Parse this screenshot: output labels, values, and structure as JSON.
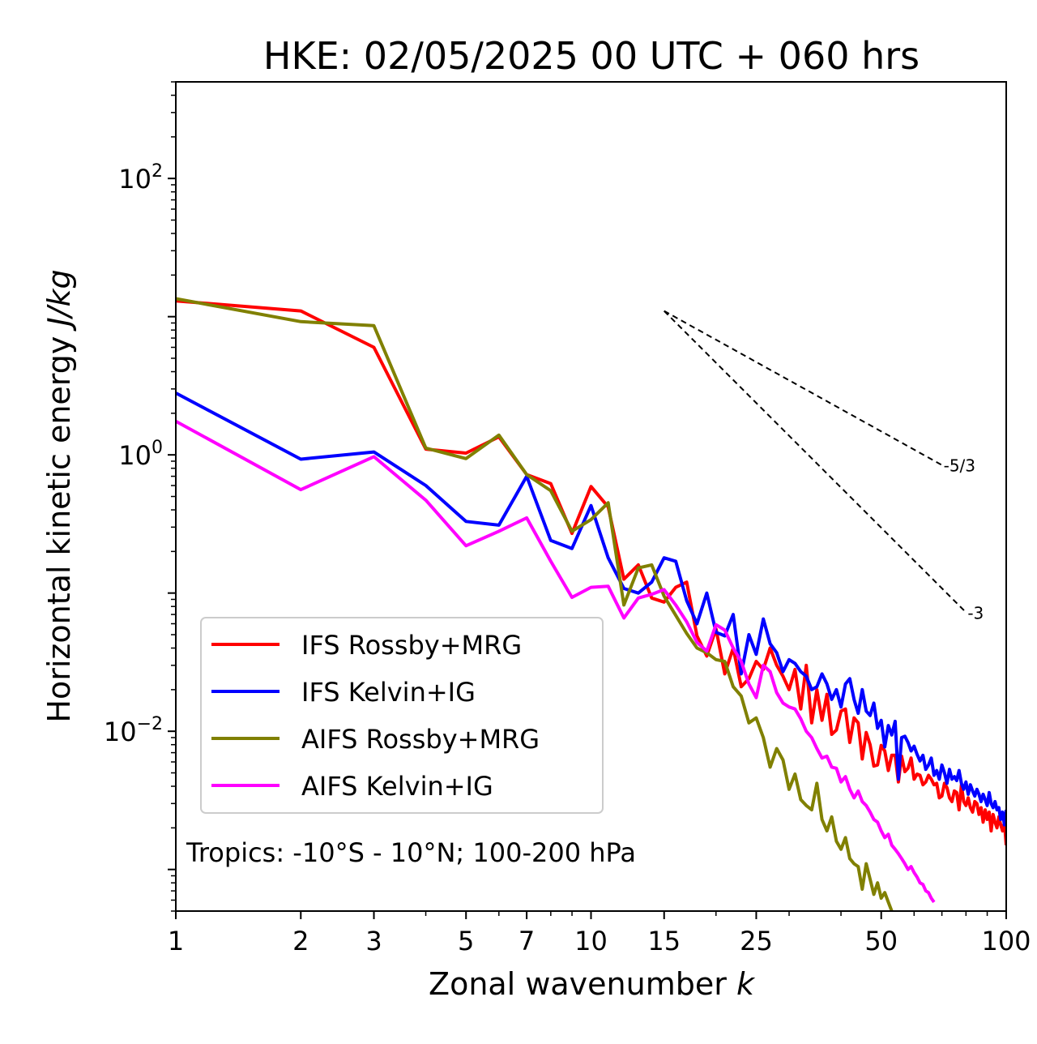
{
  "chart_data": {
    "type": "line",
    "title": "HKE: 02/05/2025 00 UTC + 060 hrs",
    "xlabel": "Zonal wavenumber",
    "xlabel_var": "k",
    "ylabel": "Horizontal kinetic energy",
    "ylabel_unit": "J/kg",
    "xscale": "log",
    "yscale": "log",
    "xlim": [
      1,
      100
    ],
    "ylim": [
      0.0005,
      500
    ],
    "x_ticks": [
      {
        "value": 1,
        "label": "1"
      },
      {
        "value": 2,
        "label": "2"
      },
      {
        "value": 3,
        "label": "3"
      },
      {
        "value": 5,
        "label": "5"
      },
      {
        "value": 7,
        "label": "7"
      },
      {
        "value": 10,
        "label": "10"
      },
      {
        "value": 15,
        "label": "15"
      },
      {
        "value": 25,
        "label": "25"
      },
      {
        "value": 50,
        "label": "50"
      },
      {
        "value": 100,
        "label": "100"
      }
    ],
    "y_ticks": [
      {
        "value": 0.01,
        "base": "10",
        "exp": "−2"
      },
      {
        "value": 1,
        "base": "10",
        "exp": "0"
      },
      {
        "value": 100,
        "base": "10",
        "exp": "2"
      }
    ],
    "annotation": "Tropics: -10°S - 10°N; 100-200 hPa",
    "legend_placement": "lower-left",
    "grid": false,
    "reference_slopes": [
      {
        "label": "-5/3",
        "exponent": -1.6667,
        "x_start": 15,
        "x_end": 70,
        "y_start": 11
      },
      {
        "label": "-3",
        "exponent": -3,
        "x_start": 15,
        "x_end": 80,
        "y_start": 11
      }
    ],
    "series": [
      {
        "name": "IFS Rossby+MRG",
        "color": "#ff0000",
        "x": [
          1,
          2,
          3,
          4,
          5,
          6,
          7,
          8,
          9,
          10,
          11,
          12,
          13,
          14,
          15,
          16,
          17,
          18,
          19,
          20,
          21,
          22,
          23,
          24,
          25,
          26,
          27,
          28,
          29,
          30,
          31,
          32,
          33,
          34,
          35,
          36,
          37,
          38,
          39,
          40,
          41,
          42,
          43,
          44,
          45,
          46,
          47,
          48,
          49,
          50,
          51,
          52,
          53,
          54,
          55,
          56,
          57,
          58,
          59,
          60,
          61,
          62,
          63,
          64,
          65,
          66,
          67,
          68,
          69,
          70,
          71,
          72,
          73,
          74,
          75,
          76,
          77,
          78,
          79,
          80,
          81,
          82,
          83,
          84,
          85,
          86,
          87,
          88,
          89,
          90,
          91,
          92,
          93,
          94,
          95,
          96,
          97,
          98,
          99,
          100
        ],
        "values": [
          13,
          11,
          6,
          1.1,
          1.03,
          1.35,
          0.72,
          0.62,
          0.27,
          0.59,
          0.42,
          0.126,
          0.16,
          0.092,
          0.086,
          0.11,
          0.12,
          0.049,
          0.035,
          0.055,
          0.026,
          0.04,
          0.021,
          0.024,
          0.032,
          0.028,
          0.04,
          0.03,
          0.025,
          0.02,
          0.028,
          0.0145,
          0.03,
          0.0115,
          0.02,
          0.012,
          0.0185,
          0.0095,
          0.0102,
          0.014,
          0.0145,
          0.0083,
          0.0125,
          0.0115,
          0.0063,
          0.0098,
          0.008,
          0.0056,
          0.0057,
          0.0079,
          0.0072,
          0.0052,
          0.0067,
          0.0067,
          0.0043,
          0.0066,
          0.0051,
          0.0054,
          0.0064,
          0.0045,
          0.0049,
          0.0048,
          0.0041,
          0.0043,
          0.0048,
          0.0045,
          0.0041,
          0.0042,
          0.0033,
          0.0034,
          0.0042,
          0.0039,
          0.0033,
          0.0031,
          0.0037,
          0.0036,
          0.0027,
          0.0041,
          0.0031,
          0.0029,
          0.0033,
          0.0028,
          0.0026,
          0.0031,
          0.003,
          0.0025,
          0.0028,
          0.0022,
          0.0027,
          0.0023,
          0.0026,
          0.0019,
          0.0025,
          0.0022,
          0.002,
          0.0024,
          0.0021,
          0.0019,
          0.0022,
          0.0015
        ]
      },
      {
        "name": "IFS Kelvin+IG",
        "color": "#0000ff",
        "x": [
          1,
          2,
          3,
          4,
          5,
          6,
          7,
          8,
          9,
          10,
          11,
          12,
          13,
          14,
          15,
          16,
          17,
          18,
          19,
          20,
          21,
          22,
          23,
          24,
          25,
          26,
          27,
          28,
          29,
          30,
          31,
          32,
          33,
          34,
          35,
          36,
          37,
          38,
          39,
          40,
          41,
          42,
          43,
          44,
          45,
          46,
          47,
          48,
          49,
          50,
          51,
          52,
          53,
          54,
          55,
          56,
          57,
          58,
          59,
          60,
          61,
          62,
          63,
          64,
          65,
          66,
          67,
          68,
          69,
          70,
          71,
          72,
          73,
          74,
          75,
          76,
          77,
          78,
          79,
          80,
          81,
          82,
          83,
          84,
          85,
          86,
          87,
          88,
          89,
          90,
          91,
          92,
          93,
          94,
          95,
          96,
          97,
          98,
          99,
          100
        ],
        "values": [
          2.8,
          0.93,
          1.05,
          0.6,
          0.33,
          0.31,
          0.7,
          0.24,
          0.21,
          0.43,
          0.18,
          0.108,
          0.1,
          0.12,
          0.18,
          0.17,
          0.088,
          0.06,
          0.1,
          0.052,
          0.049,
          0.07,
          0.026,
          0.05,
          0.036,
          0.065,
          0.043,
          0.037,
          0.027,
          0.033,
          0.031,
          0.027,
          0.025,
          0.02,
          0.021,
          0.026,
          0.022,
          0.017,
          0.02,
          0.015,
          0.022,
          0.024,
          0.017,
          0.0135,
          0.02,
          0.014,
          0.013,
          0.016,
          0.0105,
          0.012,
          0.0077,
          0.011,
          0.0094,
          0.0118,
          0.0045,
          0.009,
          0.0092,
          0.0083,
          0.0072,
          0.0078,
          0.0068,
          0.0061,
          0.0067,
          0.0053,
          0.0057,
          0.0064,
          0.0048,
          0.0052,
          0.0045,
          0.0057,
          0.005,
          0.0042,
          0.0053,
          0.0045,
          0.0047,
          0.0044,
          0.0052,
          0.0042,
          0.0038,
          0.0043,
          0.0035,
          0.0041,
          0.0037,
          0.0034,
          0.0038,
          0.0035,
          0.0031,
          0.0035,
          0.0032,
          0.0029,
          0.0036,
          0.003,
          0.0028,
          0.0031,
          0.0027,
          0.0028,
          0.0023,
          0.0026,
          0.0021,
          0.0027
        ]
      },
      {
        "name": "AIFS Rossby+MRG",
        "color": "#808000",
        "x": [
          1,
          2,
          3,
          4,
          5,
          6,
          7,
          8,
          9,
          10,
          11,
          12,
          13,
          14,
          15,
          16,
          17,
          18,
          19,
          20,
          21,
          22,
          23,
          24,
          25,
          26,
          27,
          28,
          29,
          30,
          31,
          32,
          33,
          34,
          35,
          36,
          37,
          38,
          39,
          40,
          41,
          42,
          43,
          44,
          45,
          46,
          47,
          48,
          49,
          50,
          51,
          52,
          53
        ],
        "values": [
          13.5,
          9.2,
          8.6,
          1.12,
          0.94,
          1.39,
          0.72,
          0.55,
          0.28,
          0.34,
          0.45,
          0.082,
          0.152,
          0.16,
          0.095,
          0.069,
          0.051,
          0.04,
          0.037,
          0.033,
          0.032,
          0.021,
          0.018,
          0.0115,
          0.0125,
          0.009,
          0.0055,
          0.0075,
          0.0062,
          0.0038,
          0.0049,
          0.0032,
          0.0029,
          0.0027,
          0.0042,
          0.0023,
          0.0019,
          0.0024,
          0.0016,
          0.0014,
          0.0017,
          0.0012,
          0.0011,
          0.00105,
          0.00072,
          0.0011,
          0.00085,
          0.00066,
          0.0008,
          0.00062,
          0.00068,
          0.00058,
          0.0005
        ]
      },
      {
        "name": "AIFS Kelvin+IG",
        "color": "#ff00ff",
        "x": [
          1,
          2,
          3,
          4,
          5,
          6,
          7,
          8,
          9,
          10,
          11,
          12,
          13,
          14,
          15,
          16,
          17,
          18,
          19,
          20,
          21,
          22,
          23,
          24,
          25,
          26,
          27,
          28,
          29,
          30,
          31,
          32,
          33,
          34,
          35,
          36,
          37,
          38,
          39,
          40,
          41,
          42,
          43,
          44,
          45,
          46,
          47,
          48,
          49,
          50,
          51,
          52,
          53,
          54,
          55,
          56,
          57,
          58,
          59,
          60,
          61,
          62,
          63,
          64,
          65,
          66,
          67
        ],
        "values": [
          1.75,
          0.56,
          0.97,
          0.47,
          0.22,
          0.28,
          0.35,
          0.17,
          0.093,
          0.11,
          0.112,
          0.066,
          0.092,
          0.098,
          0.106,
          0.082,
          0.062,
          0.044,
          0.038,
          0.059,
          0.054,
          0.04,
          0.032,
          0.022,
          0.0175,
          0.03,
          0.027,
          0.019,
          0.016,
          0.015,
          0.0145,
          0.0123,
          0.01,
          0.009,
          0.0075,
          0.0064,
          0.0066,
          0.0055,
          0.0054,
          0.0043,
          0.0047,
          0.0038,
          0.0033,
          0.0037,
          0.0031,
          0.0029,
          0.0026,
          0.0023,
          0.0022,
          0.0019,
          0.0017,
          0.0018,
          0.0015,
          0.0014,
          0.0013,
          0.0012,
          0.0011,
          0.001,
          0.00105,
          0.00095,
          0.00088,
          0.0008,
          0.00078,
          0.0007,
          0.00068,
          0.00062,
          0.00058
        ]
      }
    ]
  }
}
